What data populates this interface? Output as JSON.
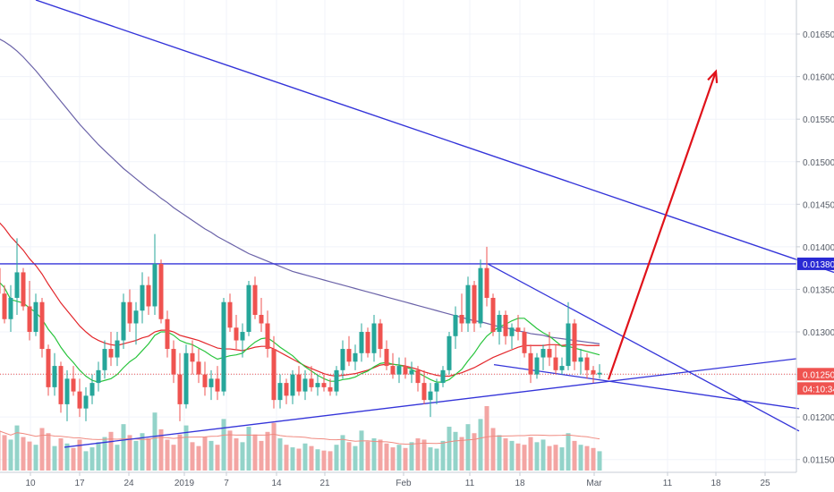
{
  "chart_data": {
    "type": "candlestick",
    "x_tick_labels": [
      "10",
      "17",
      "24",
      "2019",
      "7",
      "14",
      "21",
      "Feb",
      "11",
      "18",
      "Mar",
      "11",
      "18",
      "25"
    ],
    "y_tick_labels": [
      "0.011500",
      "0.012000",
      "0.012500",
      "0.013000",
      "0.013500",
      "0.014000",
      "0.014500",
      "0.015000",
      "0.015500",
      "0.016000",
      "0.016500"
    ],
    "ylim": [
      0.01135,
      0.0169
    ],
    "price_labels": {
      "resistance": "0.013800",
      "last_price": "0.012503",
      "countdown": "04:10:34"
    },
    "resistance_level": 0.0138,
    "last_price": 0.012503,
    "colors": {
      "up": "#26a69a",
      "down": "#ef5350",
      "trendline": "#3434d9",
      "ma_fast": "#28c43c",
      "ma_mid": "#e3262b",
      "ma_slow": "#6a62a8",
      "arrow": "#e0121a",
      "resistance_label_bg": "#2a2ad4",
      "last_label_bg": "#ef5350",
      "axis_text": "#555b66"
    },
    "candles": [
      [
        0.01375,
        0.0138,
        0.0134,
        0.01345
      ],
      [
        0.01345,
        0.01355,
        0.0131,
        0.01315
      ],
      [
        0.01315,
        0.01355,
        0.013,
        0.0134
      ],
      [
        0.0134,
        0.0141,
        0.0132,
        0.0137
      ],
      [
        0.0137,
        0.01375,
        0.01325,
        0.0133
      ],
      [
        0.0133,
        0.0136,
        0.0129,
        0.013
      ],
      [
        0.013,
        0.01345,
        0.01295,
        0.01335
      ],
      [
        0.01335,
        0.0134,
        0.0127,
        0.0128
      ],
      [
        0.0128,
        0.01285,
        0.01225,
        0.01235
      ],
      [
        0.01235,
        0.01275,
        0.01225,
        0.0126
      ],
      [
        0.0126,
        0.01265,
        0.01205,
        0.01215
      ],
      [
        0.01215,
        0.01255,
        0.01195,
        0.01245
      ],
      [
        0.01245,
        0.0126,
        0.01225,
        0.0123
      ],
      [
        0.0123,
        0.01245,
        0.012,
        0.0121
      ],
      [
        0.0121,
        0.01235,
        0.01195,
        0.01225
      ],
      [
        0.01225,
        0.0125,
        0.01215,
        0.0124
      ],
      [
        0.0124,
        0.01265,
        0.0123,
        0.01255
      ],
      [
        0.01255,
        0.0129,
        0.01245,
        0.0128
      ],
      [
        0.0128,
        0.013,
        0.0126,
        0.0127
      ],
      [
        0.0127,
        0.013,
        0.0126,
        0.0129
      ],
      [
        0.0129,
        0.01345,
        0.0128,
        0.01335
      ],
      [
        0.01335,
        0.0135,
        0.013,
        0.0131
      ],
      [
        0.0131,
        0.01335,
        0.01285,
        0.01325
      ],
      [
        0.01325,
        0.0137,
        0.0131,
        0.01355
      ],
      [
        0.01355,
        0.01365,
        0.0132,
        0.0133
      ],
      [
        0.0133,
        0.01415,
        0.0132,
        0.0138
      ],
      [
        0.0138,
        0.01385,
        0.0131,
        0.01315
      ],
      [
        0.01315,
        0.01325,
        0.0127,
        0.0128
      ],
      [
        0.0128,
        0.0129,
        0.0124,
        0.0125
      ],
      [
        0.0125,
        0.01275,
        0.01195,
        0.01215
      ],
      [
        0.01215,
        0.01285,
        0.0121,
        0.01275
      ],
      [
        0.01275,
        0.0129,
        0.0125,
        0.01265
      ],
      [
        0.01265,
        0.0128,
        0.0124,
        0.0125
      ],
      [
        0.0125,
        0.01265,
        0.01225,
        0.01235
      ],
      [
        0.01235,
        0.01255,
        0.0122,
        0.01245
      ],
      [
        0.01245,
        0.0126,
        0.0122,
        0.0123
      ],
      [
        0.0123,
        0.0134,
        0.01225,
        0.01335
      ],
      [
        0.01335,
        0.01345,
        0.013,
        0.01305
      ],
      [
        0.01305,
        0.0132,
        0.0128,
        0.0129
      ],
      [
        0.0129,
        0.0131,
        0.0127,
        0.013
      ],
      [
        0.013,
        0.0136,
        0.01295,
        0.01355
      ],
      [
        0.01355,
        0.01365,
        0.01315,
        0.0132
      ],
      [
        0.0132,
        0.0134,
        0.013,
        0.0131
      ],
      [
        0.0131,
        0.01325,
        0.0127,
        0.0128
      ],
      [
        0.0128,
        0.01295,
        0.0121,
        0.0122
      ],
      [
        0.0122,
        0.0125,
        0.0121,
        0.0124
      ],
      [
        0.0124,
        0.01245,
        0.01215,
        0.01225
      ],
      [
        0.01225,
        0.01255,
        0.01215,
        0.0125
      ],
      [
        0.0125,
        0.0126,
        0.01225,
        0.0123
      ],
      [
        0.0123,
        0.01255,
        0.0122,
        0.01245
      ],
      [
        0.01245,
        0.0126,
        0.0123,
        0.01235
      ],
      [
        0.01235,
        0.0125,
        0.01225,
        0.0124
      ],
      [
        0.0124,
        0.0125,
        0.0123,
        0.01235
      ],
      [
        0.01235,
        0.01245,
        0.01225,
        0.0123
      ],
      [
        0.0123,
        0.0126,
        0.01225,
        0.01255
      ],
      [
        0.01255,
        0.0129,
        0.01245,
        0.0128
      ],
      [
        0.0128,
        0.01295,
        0.0126,
        0.01265
      ],
      [
        0.01265,
        0.01285,
        0.01255,
        0.01275
      ],
      [
        0.01275,
        0.0131,
        0.01265,
        0.013
      ],
      [
        0.013,
        0.01305,
        0.0127,
        0.01275
      ],
      [
        0.01275,
        0.0132,
        0.01265,
        0.0131
      ],
      [
        0.0131,
        0.01315,
        0.0127,
        0.0128
      ],
      [
        0.0128,
        0.0129,
        0.01255,
        0.0126
      ],
      [
        0.0126,
        0.01275,
        0.01245,
        0.0125
      ],
      [
        0.0125,
        0.0127,
        0.0124,
        0.0126
      ],
      [
        0.0126,
        0.0127,
        0.01245,
        0.0125
      ],
      [
        0.0125,
        0.01265,
        0.0124,
        0.01255
      ],
      [
        0.01255,
        0.0126,
        0.0123,
        0.0124
      ],
      [
        0.0124,
        0.01255,
        0.01215,
        0.0122
      ],
      [
        0.0122,
        0.0124,
        0.012,
        0.0123
      ],
      [
        0.0123,
        0.01245,
        0.01215,
        0.0124
      ],
      [
        0.0124,
        0.0126,
        0.01235,
        0.01255
      ],
      [
        0.01255,
        0.013,
        0.0125,
        0.01295
      ],
      [
        0.01295,
        0.0133,
        0.0128,
        0.0132
      ],
      [
        0.0132,
        0.01345,
        0.013,
        0.0131
      ],
      [
        0.0131,
        0.01365,
        0.013,
        0.01355
      ],
      [
        0.01355,
        0.0136,
        0.013,
        0.0131
      ],
      [
        0.0131,
        0.01385,
        0.01305,
        0.01375
      ],
      [
        0.01375,
        0.014,
        0.0133,
        0.0134
      ],
      [
        0.0134,
        0.01345,
        0.01295,
        0.013
      ],
      [
        0.013,
        0.01325,
        0.01285,
        0.0132
      ],
      [
        0.0132,
        0.01325,
        0.01285,
        0.01295
      ],
      [
        0.01295,
        0.0131,
        0.0128,
        0.01305
      ],
      [
        0.01305,
        0.0132,
        0.0129,
        0.013
      ],
      [
        0.013,
        0.01305,
        0.0127,
        0.01275
      ],
      [
        0.01275,
        0.01285,
        0.0124,
        0.0125
      ],
      [
        0.0125,
        0.01275,
        0.01245,
        0.0127
      ],
      [
        0.0127,
        0.01285,
        0.01255,
        0.0128
      ],
      [
        0.0128,
        0.013,
        0.0126,
        0.0127
      ],
      [
        0.0127,
        0.01285,
        0.0125,
        0.01255
      ],
      [
        0.01255,
        0.0127,
        0.0125,
        0.0126
      ],
      [
        0.0126,
        0.01335,
        0.01255,
        0.0131
      ],
      [
        0.0131,
        0.01315,
        0.01255,
        0.01265
      ],
      [
        0.01265,
        0.0128,
        0.0125,
        0.0127
      ],
      [
        0.0127,
        0.01275,
        0.01245,
        0.01255
      ],
      [
        0.01255,
        0.0126,
        0.0124,
        0.0125
      ],
      [
        0.0125,
        0.01262,
        0.01245,
        0.01252
      ]
    ],
    "ma_fast": [
      0.0136,
      0.01352,
      0.01338,
      0.01336,
      0.01334,
      0.01328,
      0.01323,
      0.01315,
      0.01303,
      0.01294,
      0.01282,
      0.01272,
      0.01264,
      0.01255,
      0.01248,
      0.01243,
      0.01241,
      0.01243,
      0.01245,
      0.0125,
      0.01258,
      0.01265,
      0.0127,
      0.01278,
      0.01286,
      0.01296,
      0.013,
      0.013,
      0.01296,
      0.0129,
      0.01287,
      0.01285,
      0.01281,
      0.01277,
      0.01272,
      0.01268,
      0.0127,
      0.01272,
      0.01273,
      0.01275,
      0.01282,
      0.01288,
      0.01292,
      0.01293,
      0.01288,
      0.01282,
      0.01277,
      0.01272,
      0.01265,
      0.01259,
      0.01254,
      0.01249,
      0.01245,
      0.01242,
      0.01242,
      0.01244,
      0.01245,
      0.01247,
      0.01251,
      0.01254,
      0.01259,
      0.01263,
      0.01264,
      0.01262,
      0.01261,
      0.01259,
      0.01256,
      0.01252,
      0.01248,
      0.01244,
      0.01241,
      0.01241,
      0.01244,
      0.0125,
      0.01256,
      0.01266,
      0.01275,
      0.01286,
      0.01295,
      0.01301,
      0.01306,
      0.01309,
      0.01313,
      0.01316,
      0.01316,
      0.0131,
      0.01304,
      0.01299,
      0.01295,
      0.01289,
      0.01283,
      0.01283,
      0.01281,
      0.01279,
      0.01277,
      0.01275,
      0.01273
    ],
    "ma_mid": [
      0.0143,
      0.01422,
      0.01412,
      0.01404,
      0.01396,
      0.01386,
      0.01378,
      0.01368,
      0.01356,
      0.01345,
      0.01334,
      0.01325,
      0.01316,
      0.01307,
      0.013,
      0.01294,
      0.0129,
      0.01287,
      0.01285,
      0.01284,
      0.01286,
      0.01288,
      0.0129,
      0.01293,
      0.01295,
      0.013,
      0.01302,
      0.01302,
      0.013,
      0.01296,
      0.01294,
      0.01292,
      0.0129,
      0.01287,
      0.01284,
      0.01281,
      0.0128,
      0.0128,
      0.01279,
      0.01278,
      0.0128,
      0.01282,
      0.01283,
      0.01283,
      0.0128,
      0.01276,
      0.01272,
      0.01268,
      0.01264,
      0.0126,
      0.01257,
      0.01254,
      0.01251,
      0.01249,
      0.01248,
      0.01249,
      0.0125,
      0.01251,
      0.01253,
      0.01255,
      0.01258,
      0.01261,
      0.01262,
      0.01262,
      0.01261,
      0.0126,
      0.01258,
      0.01256,
      0.01253,
      0.01251,
      0.01249,
      0.01248,
      0.01248,
      0.0125,
      0.01252,
      0.01255,
      0.01258,
      0.01262,
      0.01266,
      0.0127,
      0.01273,
      0.01276,
      0.01279,
      0.01282,
      0.01284,
      0.01284,
      0.01284,
      0.01284,
      0.01285,
      0.01285,
      0.01284,
      0.01285,
      0.01285,
      0.01285,
      0.01284,
      0.01284,
      0.01284
    ],
    "ma_slow": [
      0.01645,
      0.01641,
      0.01636,
      0.0163,
      0.01623,
      0.01615,
      0.01607,
      0.01598,
      0.01589,
      0.0158,
      0.01571,
      0.01562,
      0.01553,
      0.01544,
      0.01536,
      0.01528,
      0.0152,
      0.01513,
      0.01506,
      0.01499,
      0.01492,
      0.01486,
      0.0148,
      0.01474,
      0.01468,
      0.01463,
      0.01457,
      0.01452,
      0.01446,
      0.01441,
      0.01436,
      0.01431,
      0.01426,
      0.01421,
      0.01417,
      0.01412,
      0.01408,
      0.01404,
      0.014,
      0.01396,
      0.01392,
      0.01389,
      0.01386,
      0.01383,
      0.0138,
      0.01377,
      0.01374,
      0.01371,
      0.01369,
      0.01367,
      0.01365,
      0.01363,
      0.01361,
      0.01359,
      0.01357,
      0.01355,
      0.01353,
      0.01351,
      0.01349,
      0.01347,
      0.01345,
      0.01343,
      0.01341,
      0.01339,
      0.01337,
      0.01335,
      0.01333,
      0.01331,
      0.01329,
      0.01327,
      0.01325,
      0.01323,
      0.01321,
      0.01319,
      0.01317,
      0.01315,
      0.01313,
      0.01312,
      0.0131,
      0.01308,
      0.01306,
      0.01305,
      0.01303,
      0.01301,
      0.013,
      0.01298,
      0.01297,
      0.01296,
      0.01294,
      0.01293,
      0.01292,
      0.01291,
      0.0129,
      0.01289,
      0.01288,
      0.01287,
      0.01286
    ],
    "volume": [
      0.62,
      0.55,
      0.48,
      0.7,
      0.52,
      0.45,
      0.4,
      0.66,
      0.58,
      0.38,
      0.5,
      0.42,
      0.35,
      0.48,
      0.3,
      0.36,
      0.44,
      0.52,
      0.6,
      0.4,
      0.72,
      0.55,
      0.46,
      0.58,
      0.5,
      0.9,
      0.64,
      0.48,
      0.4,
      0.56,
      0.7,
      0.44,
      0.38,
      0.52,
      0.46,
      0.4,
      0.8,
      0.62,
      0.5,
      0.44,
      0.68,
      0.56,
      0.46,
      0.6,
      0.74,
      0.5,
      0.4,
      0.36,
      0.34,
      0.42,
      0.38,
      0.33,
      0.31,
      0.3,
      0.4,
      0.55,
      0.44,
      0.38,
      0.62,
      0.45,
      0.5,
      0.48,
      0.42,
      0.36,
      0.4,
      0.35,
      0.44,
      0.5,
      0.48,
      0.36,
      0.34,
      0.46,
      0.68,
      0.6,
      0.52,
      0.72,
      0.58,
      0.8,
      1.0,
      0.66,
      0.55,
      0.5,
      0.46,
      0.42,
      0.4,
      0.52,
      0.44,
      0.48,
      0.38,
      0.4,
      0.36,
      0.58,
      0.46,
      0.4,
      0.38,
      0.35,
      0.3
    ]
  }
}
